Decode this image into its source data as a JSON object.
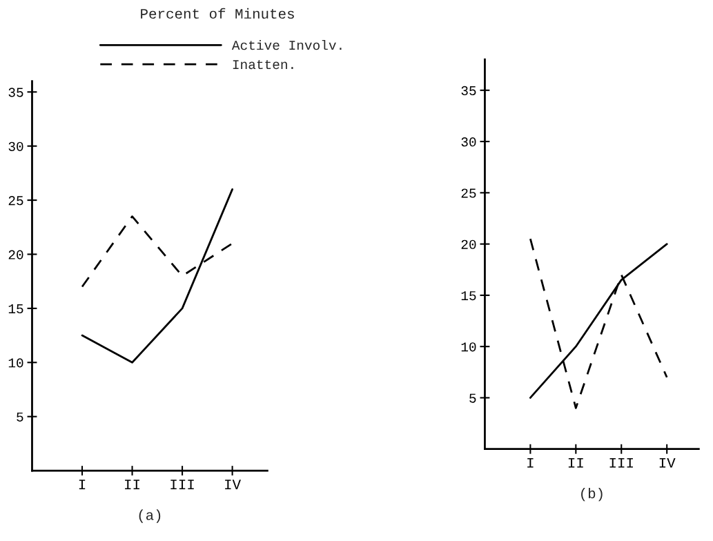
{
  "chart_data": [
    {
      "type": "line",
      "title": "Percent of Minutes",
      "xlabel": "(a)",
      "categories": [
        "I",
        "II",
        "III",
        "IV"
      ],
      "series": [
        {
          "name": "Active Involv.",
          "color": "#000000",
          "line_style": "solid",
          "values": [
            12.5,
            10,
            15,
            26
          ]
        },
        {
          "name": "Inatten.",
          "color": "#000000",
          "line_style": "dashed",
          "values": [
            17,
            23.5,
            18,
            21
          ]
        }
      ],
      "ylim": [
        0,
        36
      ],
      "yticks": [
        5,
        10,
        15,
        20,
        25,
        30,
        35
      ],
      "grid": false,
      "legend": "top",
      "marker": "none"
    },
    {
      "type": "line",
      "xlabel": "(b)",
      "categories": [
        "I",
        "II",
        "III",
        "IV"
      ],
      "series": [
        {
          "color": "#000000",
          "line_style": "solid",
          "values": [
            5,
            10,
            16.5,
            20
          ]
        },
        {
          "color": "#000000",
          "line_style": "dashed",
          "values": [
            20.5,
            4,
            17,
            7
          ]
        }
      ],
      "ylim": [
        0,
        38
      ],
      "yticks": [
        5,
        10,
        15,
        20,
        25,
        30,
        35
      ],
      "grid": false,
      "legend": false,
      "marker": "none"
    }
  ]
}
